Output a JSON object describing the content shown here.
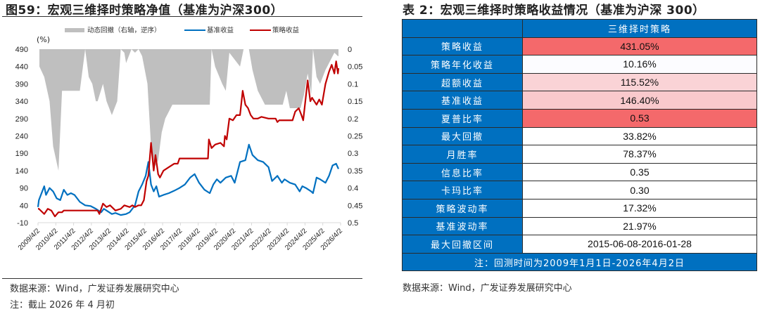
{
  "figure": {
    "title": "图59：宏观三维择时策略净值（基准为沪深300）",
    "source": "数据来源：Wind，广发证券发展研究中心",
    "note": "注：截止 2026 年 4 月初"
  },
  "table": {
    "title": "表 2：宏观三维择时策略收益情况（基准为沪深 300）",
    "column_header": "三维择时策略",
    "rows": [
      {
        "label": "策略收益",
        "value": "431.05%",
        "bg": "#f4696b"
      },
      {
        "label": "策略年化收益",
        "value": "10.16%",
        "bg": "#fcfcff"
      },
      {
        "label": "超额收益",
        "value": "115.52%",
        "bg": "#fad3d6"
      },
      {
        "label": "基准收益",
        "value": "146.40%",
        "bg": "#f9c9cc"
      },
      {
        "label": "夏普比率",
        "value": "0.53",
        "bg": "#f4696b"
      },
      {
        "label": "最大回撤",
        "value": "33.82%",
        "bg": "#ffffff"
      },
      {
        "label": "月胜率",
        "value": "78.37%",
        "bg": "#ffffff"
      },
      {
        "label": "信息比率",
        "value": "0.35",
        "bg": "#ffffff"
      },
      {
        "label": "卡玛比率",
        "value": "0.30",
        "bg": "#ffffff"
      },
      {
        "label": "策略波动率",
        "value": "17.32%",
        "bg": "#ffffff"
      },
      {
        "label": "基准波动率",
        "value": "21.97%",
        "bg": "#ffffff"
      },
      {
        "label": "最大回撤区间",
        "value": "2015-06-08-2016-01-28",
        "bg": "#ffffff"
      }
    ],
    "footnote": "注：回测时间为2009年1月1日-2026年4月2日",
    "source": "数据来源：Wind，广发证券发展研究中心",
    "colors": {
      "header_blue": "#0070c0",
      "high": "#f4696b",
      "mid": "#f9c9cc"
    }
  },
  "chart_data": {
    "type": "line",
    "title": "宏观三维择时策略净值（基准为沪深300）",
    "ylabel": "(%)",
    "y_left_ticks": [
      490,
      440,
      390,
      340,
      290,
      240,
      190,
      140,
      90,
      40,
      -10
    ],
    "ylim": [
      -10,
      490
    ],
    "y_right_ticks": [
      "0",
      "0.05",
      "0.1",
      "0.15",
      "0.2",
      "0.25",
      "0.3",
      "0.35",
      "0.4",
      "0.45",
      "0.5"
    ],
    "y_right_lim": [
      0,
      0.5
    ],
    "y_right_reversed": true,
    "x_ticks": [
      "2009/4/2",
      "2010/4/2",
      "2011/4/2",
      "2012/4/2",
      "2013/4/2",
      "2014/4/2",
      "2015/4/2",
      "2016/4/2",
      "2017/4/2",
      "2018/4/2",
      "2019/4/2",
      "2020/4/2",
      "2021/4/2",
      "2022/4/2",
      "2023/4/2",
      "2024/4/2",
      "2025/4/2",
      "2026/4/2"
    ],
    "legend": [
      "动态回撤（右轴，逆序）",
      "基准收益",
      "策略收益"
    ],
    "legend_position": "top",
    "grid": false,
    "series": [
      {
        "name": "基准收益",
        "color": "#0070c0",
        "axis": "left",
        "x": [
          2009.0,
          2009.3,
          2009.6,
          2009.7,
          2009.9,
          2010.1,
          2010.3,
          2010.5,
          2010.7,
          2010.9,
          2011.1,
          2011.3,
          2011.6,
          2011.9,
          2012.2,
          2012.5,
          2012.8,
          2012.95,
          2013.1,
          2013.4,
          2013.6,
          2013.9,
          2014.2,
          2014.4,
          2014.7,
          2014.9,
          2015.1,
          2015.3,
          2015.45,
          2015.6,
          2015.75,
          2015.9,
          2016.05,
          2016.3,
          2016.6,
          2016.9,
          2017.2,
          2017.5,
          2017.8,
          2018.05,
          2018.3,
          2018.6,
          2018.9,
          2019.1,
          2019.3,
          2019.5,
          2019.8,
          2020.1,
          2020.3,
          2020.6,
          2020.9,
          2021.1,
          2021.3,
          2021.6,
          2021.9,
          2022.2,
          2022.4,
          2022.7,
          2022.95,
          2023.1,
          2023.4,
          2023.7,
          2023.95,
          2024.1,
          2024.3,
          2024.6,
          2024.7,
          2024.9,
          2025.1,
          2025.4,
          2025.6,
          2025.8,
          2026.0,
          2026.25
        ],
        "y": [
          35,
          55,
          95,
          70,
          90,
          80,
          60,
          55,
          85,
          70,
          75,
          70,
          50,
          40,
          38,
          30,
          20,
          30,
          25,
          15,
          18,
          12,
          15,
          20,
          40,
          80,
          100,
          125,
          165,
          100,
          80,
          95,
          65,
          70,
          75,
          82,
          90,
          100,
          120,
          130,
          105,
          85,
          75,
          100,
          115,
          105,
          120,
          125,
          105,
          165,
          170,
          215,
          185,
          170,
          165,
          150,
          110,
          125,
          105,
          115,
          105,
          100,
          80,
          95,
          90,
          80,
          75,
          120,
          115,
          105,
          125,
          155,
          160,
          145
        ]
      },
      {
        "name": "策略收益",
        "color": "#c00000",
        "axis": "left",
        "x": [
          2009.0,
          2009.3,
          2009.6,
          2009.8,
          2010.0,
          2010.2,
          2010.4,
          2010.6,
          2010.7,
          2011.2,
          2011.8,
          2012.3,
          2012.6,
          2012.7,
          2012.9,
          2013.1,
          2013.3,
          2013.6,
          2013.9,
          2014.1,
          2014.4,
          2014.55,
          2014.7,
          2014.9,
          2015.05,
          2015.2,
          2015.35,
          2015.45,
          2015.6,
          2015.75,
          2015.85,
          2016.0,
          2016.1,
          2016.3,
          2016.6,
          2016.9,
          2017.1,
          2017.2,
          2017.5,
          2018.0,
          2018.8,
          2018.85,
          2019.0,
          2019.2,
          2019.5,
          2019.7,
          2019.75,
          2019.85,
          2020.0,
          2020.2,
          2020.4,
          2020.6,
          2020.75,
          2020.9,
          2021.05,
          2021.2,
          2021.35,
          2021.6,
          2021.8,
          2022.2,
          2022.6,
          2022.7,
          2022.8,
          2022.9,
          2023.3,
          2023.55,
          2023.7,
          2023.9,
          2024.05,
          2024.15,
          2024.4,
          2024.55,
          2024.65,
          2024.9,
          2025.05,
          2025.2,
          2025.4,
          2025.6,
          2025.75,
          2025.9,
          2026.0,
          2026.1,
          2026.25
        ],
        "y": [
          30,
          30,
          15,
          30,
          25,
          8,
          20,
          20,
          25,
          25,
          25,
          25,
          25,
          15,
          45,
          35,
          40,
          25,
          30,
          40,
          35,
          40,
          35,
          40,
          40,
          55,
          110,
          125,
          220,
          140,
          185,
          130,
          120,
          140,
          150,
          160,
          160,
          175,
          175,
          175,
          175,
          230,
          205,
          215,
          220,
          210,
          240,
          230,
          290,
          285,
          300,
          300,
          370,
          330,
          320,
          300,
          290,
          290,
          295,
          290,
          290,
          280,
          285,
          285,
          285,
          285,
          310,
          320,
          300,
          285,
          400,
          340,
          350,
          330,
          345,
          330,
          390,
          425,
          445,
          420,
          455,
          420,
          435
        ]
      },
      {
        "name": "动态回撤（右轴，逆序）",
        "color": "#bfbfbf",
        "axis": "right",
        "type": "area",
        "x": [
          2009.0,
          2009.2,
          2009.6,
          2009.9,
          2010.1,
          2010.4,
          2010.6,
          2011.2,
          2011.6,
          2011.9,
          2012.1,
          2012.3,
          2012.5,
          2012.6,
          2012.9,
          2013.1,
          2013.4,
          2013.7,
          2013.9,
          2014.1,
          2014.2,
          2014.5,
          2014.7,
          2014.9,
          2015.1,
          2015.4,
          2015.6,
          2015.8,
          2016.0,
          2016.2,
          2016.4,
          2016.8,
          2017.2,
          2017.3,
          2018.0,
          2018.9,
          2019.0,
          2019.2,
          2019.6,
          2019.8,
          2020.0,
          2020.3,
          2020.6,
          2020.8,
          2021.1,
          2021.3,
          2021.6,
          2022.0,
          2022.4,
          2022.7,
          2023.0,
          2023.2,
          2023.4,
          2023.7,
          2024.0,
          2024.2,
          2024.4,
          2024.6,
          2024.7,
          2024.9,
          2025.1,
          2025.4,
          2025.7,
          2025.9,
          2026.1,
          2026.25
        ],
        "y": [
          0.03,
          0.05,
          0.08,
          0.15,
          0.28,
          0.35,
          0.12,
          0.12,
          0.12,
          0.0,
          0.08,
          0.1,
          0.15,
          0.15,
          0.1,
          0.15,
          0.19,
          0.15,
          0.0,
          0.01,
          0.04,
          0.0,
          0.01,
          0.0,
          0.02,
          0.1,
          0.28,
          0.34,
          0.32,
          0.24,
          0.2,
          0.16,
          0.16,
          0.16,
          0.16,
          0.16,
          0.0,
          0.05,
          0.1,
          0.12,
          0.01,
          0.03,
          0.05,
          0.0,
          0.0,
          0.06,
          0.12,
          0.16,
          0.16,
          0.16,
          0.16,
          0.12,
          0.17,
          0.17,
          0.17,
          0.13,
          0.07,
          0.13,
          0.0,
          0.08,
          0.1,
          0.06,
          0.03,
          0.01,
          0.02,
          0.02
        ]
      }
    ]
  }
}
